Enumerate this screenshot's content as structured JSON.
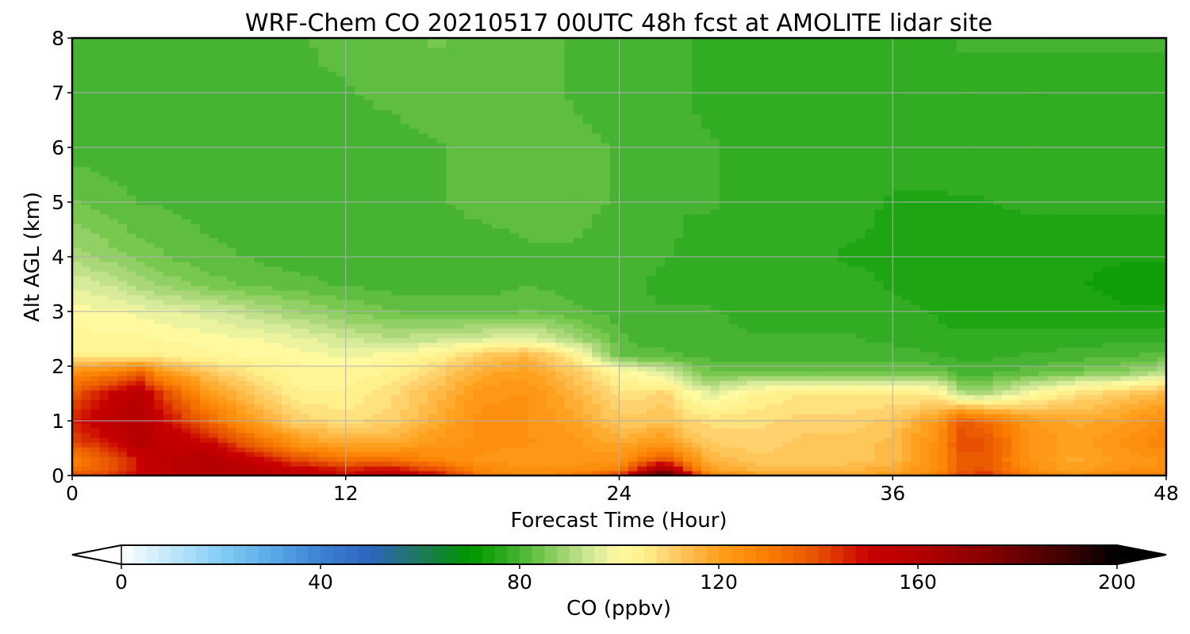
{
  "chart_data": {
    "type": "heatmap",
    "title": "WRF-Chem CO  20210517 00UTC 48h fcst at AMOLITE lidar site",
    "xlabel": "Forecast Time (Hour)",
    "ylabel": "Alt AGL (km)",
    "xlim": [
      0,
      48
    ],
    "ylim": [
      0,
      8
    ],
    "x_ticks": [
      "0",
      "12",
      "24",
      "36",
      "48"
    ],
    "y_ticks": [
      "0",
      "1",
      "2",
      "3",
      "4",
      "5",
      "6",
      "7",
      "8"
    ],
    "grid": true,
    "colorbar": {
      "label": "CO  (ppbv)",
      "range": [
        0,
        200
      ],
      "ticks": [
        "0",
        "40",
        "80",
        "120",
        "160",
        "200"
      ],
      "extend": "both",
      "stops": [
        {
          "v": 0,
          "c": "#ffffff"
        },
        {
          "v": 20,
          "c": "#82cdf5"
        },
        {
          "v": 30,
          "c": "#5aaae6"
        },
        {
          "v": 40,
          "c": "#3c82d2"
        },
        {
          "v": 50,
          "c": "#2d64be"
        },
        {
          "v": 60,
          "c": "#1e785a"
        },
        {
          "v": 70,
          "c": "#009600"
        },
        {
          "v": 75,
          "c": "#1ea514"
        },
        {
          "v": 80,
          "c": "#46b432"
        },
        {
          "v": 85,
          "c": "#78c850"
        },
        {
          "v": 90,
          "c": "#aad778"
        },
        {
          "v": 95,
          "c": "#d7eb9b"
        },
        {
          "v": 100,
          "c": "#fffaa0"
        },
        {
          "v": 105,
          "c": "#fff08c"
        },
        {
          "v": 110,
          "c": "#ffd26e"
        },
        {
          "v": 120,
          "c": "#ffa01e"
        },
        {
          "v": 130,
          "c": "#fa7d00"
        },
        {
          "v": 140,
          "c": "#e65000"
        },
        {
          "v": 150,
          "c": "#c80000"
        },
        {
          "v": 160,
          "c": "#b40000"
        },
        {
          "v": 175,
          "c": "#820000"
        },
        {
          "v": 190,
          "c": "#3c0000"
        },
        {
          "v": 200,
          "c": "#000000"
        }
      ]
    },
    "hours": [
      0,
      2,
      3,
      4,
      6,
      8,
      10,
      12,
      14,
      16,
      18,
      20,
      22,
      24,
      25,
      26,
      27,
      28,
      30,
      32,
      34,
      36,
      38,
      39,
      40,
      42,
      44,
      46,
      48
    ],
    "altitudes_km": [
      0,
      0.1,
      0.3,
      0.6,
      1,
      1.5,
      1.9,
      2.2,
      2.5,
      3,
      3.5,
      4,
      5,
      6,
      7,
      8
    ],
    "co_ppbv": [
      [
        140,
        145,
        150,
        155,
        158,
        160,
        152,
        148,
        155,
        150,
        130,
        125,
        130,
        145,
        175,
        195,
        160,
        130,
        120,
        120,
        120,
        120,
        130,
        140,
        145,
        130,
        125,
        130,
        130
      ],
      [
        132,
        140,
        150,
        155,
        160,
        158,
        152,
        148,
        150,
        140,
        128,
        124,
        125,
        128,
        150,
        170,
        140,
        120,
        116,
        116,
        116,
        118,
        126,
        138,
        140,
        125,
        120,
        124,
        124
      ],
      [
        128,
        140,
        150,
        155,
        160,
        150,
        140,
        132,
        132,
        127,
        123,
        122,
        122,
        124,
        132,
        140,
        126,
        116,
        112,
        112,
        112,
        115,
        125,
        138,
        138,
        124,
        118,
        122,
        124
      ],
      [
        140,
        150,
        160,
        155,
        150,
        135,
        122,
        118,
        118,
        122,
        125,
        124,
        122,
        118,
        120,
        122,
        115,
        111,
        110,
        112,
        112,
        115,
        125,
        140,
        140,
        124,
        120,
        124,
        128
      ],
      [
        145,
        158,
        160,
        150,
        135,
        120,
        110,
        108,
        110,
        118,
        125,
        124,
        120,
        112,
        112,
        114,
        110,
        108,
        108,
        110,
        110,
        112,
        122,
        138,
        134,
        122,
        118,
        120,
        126
      ],
      [
        138,
        152,
        158,
        142,
        122,
        112,
        104,
        104,
        108,
        115,
        123,
        124,
        116,
        108,
        108,
        110,
        102,
        96,
        104,
        106,
        106,
        106,
        104,
        92,
        90,
        100,
        108,
        112,
        116
      ],
      [
        124,
        130,
        135,
        122,
        112,
        106,
        102,
        102,
        104,
        110,
        118,
        120,
        112,
        102,
        98,
        96,
        88,
        84,
        84,
        84,
        84,
        84,
        83,
        80,
        80,
        82,
        84,
        86,
        92
      ],
      [
        104,
        104,
        104,
        104,
        102,
        101,
        100,
        98,
        100,
        104,
        112,
        116,
        104,
        84,
        82,
        82,
        81,
        80,
        80,
        80,
        80,
        80,
        79,
        78,
        78,
        79,
        80,
        81,
        82
      ],
      [
        102,
        102,
        102,
        101,
        100,
        99,
        97,
        94,
        92,
        93,
        95,
        97,
        90,
        82,
        80,
        80,
        80,
        79,
        79,
        79,
        79,
        78,
        77,
        77,
        77,
        77,
        77,
        78,
        78
      ],
      [
        100,
        99,
        98,
        97,
        95,
        92,
        89,
        86,
        84,
        83,
        83,
        84,
        82,
        80,
        79,
        79,
        79,
        79,
        78,
        78,
        78,
        77,
        76,
        75,
        75,
        75,
        75,
        74,
        74
      ],
      [
        96,
        93,
        90,
        88,
        85,
        83,
        82,
        81,
        80,
        80,
        80,
        81,
        80,
        79,
        79,
        78,
        78,
        78,
        78,
        77,
        77,
        76,
        75,
        74,
        74,
        74,
        74,
        73,
        73
      ],
      [
        90,
        87,
        85,
        84,
        82,
        81,
        80,
        80,
        80,
        80,
        80,
        81,
        81,
        80,
        79,
        79,
        78,
        78,
        77,
        77,
        76,
        76,
        75,
        74,
        74,
        74,
        74,
        74,
        74
      ],
      [
        84,
        82,
        81,
        81,
        80,
        80,
        80,
        80,
        80,
        81,
        82,
        82,
        82,
        81,
        80,
        80,
        79,
        79,
        78,
        77,
        77,
        76,
        76,
        76,
        76,
        77,
        77,
        77,
        77
      ],
      [
        80,
        80,
        80,
        80,
        80,
        81,
        81,
        80,
        80,
        81,
        82,
        82,
        82,
        81,
        80,
        80,
        79,
        79,
        78,
        77,
        77,
        77,
        77,
        78,
        78,
        78,
        78,
        78,
        78
      ],
      [
        79,
        80,
        80,
        80,
        80,
        81,
        81,
        81,
        82,
        83,
        83,
        82,
        81,
        80,
        80,
        79,
        79,
        78,
        78,
        77,
        77,
        77,
        78,
        78,
        78,
        78,
        78,
        78,
        78
      ],
      [
        80,
        80,
        80,
        81,
        81,
        81,
        81,
        82,
        83,
        84,
        83,
        82,
        81,
        80,
        80,
        79,
        79,
        78,
        78,
        77,
        77,
        78,
        78,
        79,
        79,
        79,
        79,
        79,
        79
      ]
    ]
  }
}
